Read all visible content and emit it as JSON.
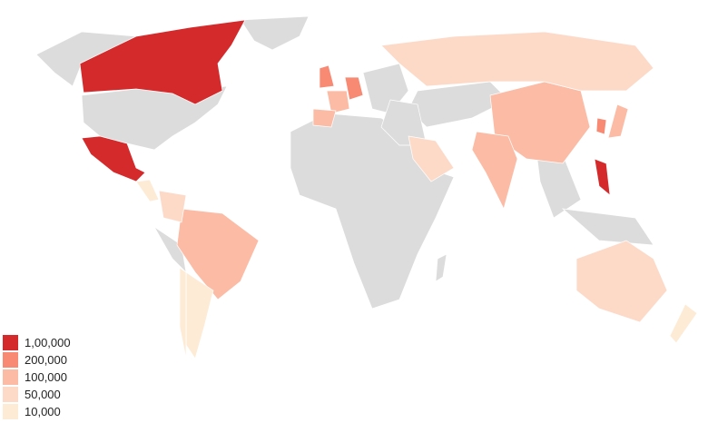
{
  "default_color": "#dcdcdc",
  "legend": [
    {
      "label": "1,00,000",
      "color": "#d42a2b"
    },
    {
      "label": "200,000",
      "color": "#f88a74"
    },
    {
      "label": "100,000",
      "color": "#fcbba4"
    },
    {
      "label": "50,000",
      "color": "#fddac8"
    },
    {
      "label": "10,000",
      "color": "#fdebd5"
    }
  ],
  "countries": [
    {
      "name": "Canada",
      "bucket": 0
    },
    {
      "name": "Mexico",
      "bucket": 0
    },
    {
      "name": "Philippines",
      "bucket": 0
    },
    {
      "name": "United Kingdom",
      "bucket": 1
    },
    {
      "name": "Germany",
      "bucket": 1
    },
    {
      "name": "South Korea",
      "bucket": 1
    },
    {
      "name": "France",
      "bucket": 2
    },
    {
      "name": "Spain",
      "bucket": 2
    },
    {
      "name": "Brazil",
      "bucket": 2
    },
    {
      "name": "China",
      "bucket": 2
    },
    {
      "name": "India",
      "bucket": 2
    },
    {
      "name": "Japan",
      "bucket": 2
    },
    {
      "name": "Australia",
      "bucket": 3
    },
    {
      "name": "Russia",
      "bucket": 3
    },
    {
      "name": "Saudi Arabia",
      "bucket": 3
    },
    {
      "name": "Colombia",
      "bucket": 3
    },
    {
      "name": "Argentina",
      "bucket": 4
    },
    {
      "name": "Chile",
      "bucket": 4
    },
    {
      "name": "New Zealand",
      "bucket": 4
    },
    {
      "name": "Central America",
      "bucket": 4
    }
  ]
}
